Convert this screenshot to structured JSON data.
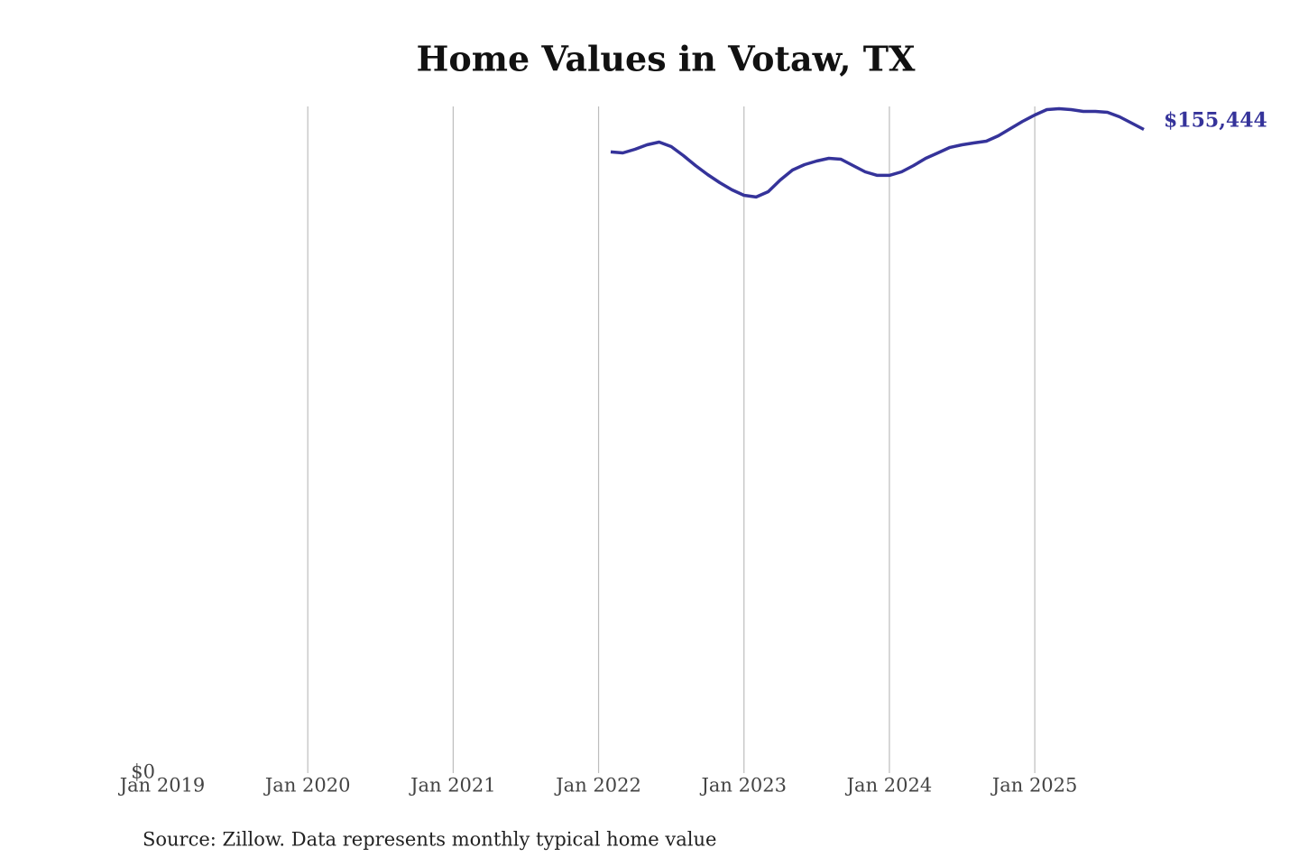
{
  "chart_data": {
    "type": "line",
    "title": "Home Values in Votaw, TX",
    "source": "Source: Zillow. Data represents monthly typical home value",
    "x": [
      "2022-02",
      "2022-03",
      "2022-04",
      "2022-05",
      "2022-06",
      "2022-07",
      "2022-08",
      "2022-09",
      "2022-10",
      "2022-11",
      "2022-12",
      "2023-01",
      "2023-02",
      "2023-03",
      "2023-04",
      "2023-05",
      "2023-06",
      "2023-07",
      "2023-08",
      "2023-09",
      "2023-10",
      "2023-11",
      "2023-12",
      "2024-01",
      "2024-02",
      "2024-03",
      "2024-04",
      "2024-05",
      "2024-06",
      "2024-07",
      "2024-08",
      "2024-09",
      "2024-10",
      "2024-11",
      "2024-12",
      "2025-01",
      "2025-02",
      "2025-03",
      "2025-04",
      "2025-05",
      "2025-06",
      "2025-07",
      "2025-08",
      "2025-09",
      "2025-10"
    ],
    "series": [
      {
        "name": "Votaw, TX",
        "color": "#35339a",
        "values": [
          150010,
          149790,
          150660,
          151750,
          152400,
          151310,
          149130,
          146730,
          144560,
          142600,
          140860,
          139550,
          139120,
          140420,
          143250,
          145640,
          146950,
          147820,
          148470,
          148250,
          146730,
          145200,
          144350,
          144350,
          145200,
          146730,
          148470,
          149790,
          151100,
          151750,
          152190,
          152620,
          153930,
          155670,
          157410,
          158940,
          160240,
          160460,
          160240,
          159810,
          159810,
          159590,
          158500,
          156980,
          155444
        ],
        "value_labels": [
          null,
          null,
          null,
          null,
          null,
          null,
          null,
          null,
          null,
          null,
          null,
          null,
          null,
          null,
          null,
          null,
          null,
          null,
          null,
          null,
          null,
          null,
          null,
          null,
          null,
          null,
          null,
          null,
          null,
          null,
          null,
          null,
          null,
          null,
          null,
          null,
          null,
          null,
          null,
          null,
          null,
          null,
          null,
          null,
          "$155,444"
        ]
      }
    ],
    "xlim": [
      "2019-01",
      "2025-10"
    ],
    "xticks": [
      {
        "value": "2019-01",
        "label": "Jan 2019"
      },
      {
        "value": "2020-01",
        "label": "Jan 2020"
      },
      {
        "value": "2021-01",
        "label": "Jan 2021"
      },
      {
        "value": "2022-01",
        "label": "Jan 2022"
      },
      {
        "value": "2023-01",
        "label": "Jan 2023"
      },
      {
        "value": "2024-01",
        "label": "Jan 2024"
      },
      {
        "value": "2025-01",
        "label": "Jan 2025"
      }
    ],
    "ylim": [
      0,
      161000
    ],
    "yticks": [
      {
        "value": 0,
        "label": "$0"
      }
    ],
    "grid": true
  }
}
